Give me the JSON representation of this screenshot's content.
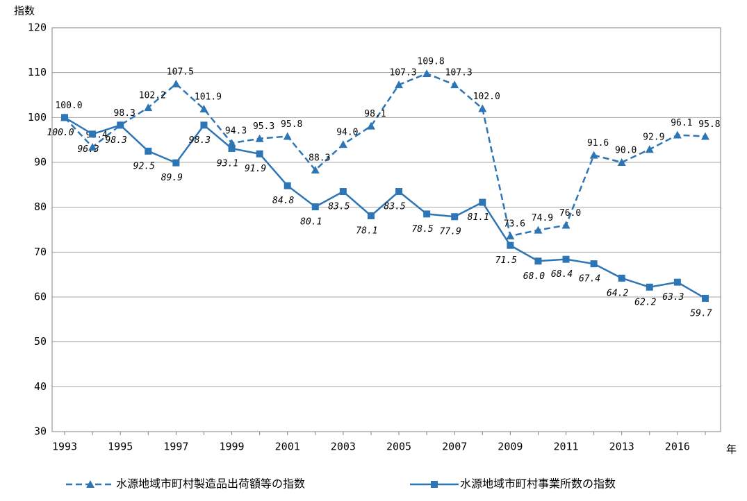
{
  "chart_data": {
    "type": "line",
    "y_label": "指数",
    "x_label": "年",
    "categories": [
      "1993",
      null,
      "1995",
      null,
      "1997",
      null,
      "1999",
      null,
      "2001",
      null,
      "2003",
      null,
      "2005",
      null,
      "2007",
      null,
      "2009",
      null,
      "2011",
      null,
      "2013",
      null,
      "2016",
      null
    ],
    "ylim": [
      30,
      120
    ],
    "yticks": [
      30,
      40,
      50,
      60,
      70,
      80,
      90,
      100,
      110,
      120
    ],
    "grid": true,
    "legend": "bottom",
    "series": [
      {
        "name": "水源地域市町村製造品出荷額等の指数",
        "color": "#2e75b6",
        "dash": true,
        "marker": "triangle",
        "values": [
          100.0,
          93.4,
          98.3,
          102.2,
          107.5,
          101.9,
          94.3,
          95.3,
          95.8,
          88.3,
          94.0,
          98.1,
          107.3,
          109.8,
          107.3,
          102.0,
          73.6,
          74.9,
          76.0,
          91.6,
          90.0,
          92.9,
          96.1,
          95.8
        ],
        "value_labels": [
          "100.0",
          "93.4",
          "98.3",
          "102.2",
          "107.5",
          "101.9",
          "94.3",
          "95.3",
          "95.8",
          "88.3",
          "94.0",
          "98.1",
          "107.3",
          "109.8",
          "107.3",
          "102.0",
          "73.6",
          "74.9",
          "76.0",
          "91.6",
          "90.0",
          "92.9",
          "96.1",
          "95.8"
        ]
      },
      {
        "name": "水源地域市町村事業所数の指数",
        "color": "#2e75b6",
        "dash": false,
        "marker": "square",
        "values": [
          100.0,
          96.3,
          98.3,
          92.5,
          89.9,
          98.3,
          93.1,
          91.9,
          84.8,
          80.1,
          83.5,
          78.1,
          83.5,
          78.5,
          77.9,
          81.1,
          71.5,
          68.0,
          68.4,
          67.4,
          64.2,
          62.2,
          63.3,
          59.7
        ],
        "value_labels": [
          "100.0",
          "96.3",
          "98.3",
          "92.5",
          "89.9",
          "98.3",
          "93.1",
          "91.9",
          "84.8",
          "80.1",
          "83.5",
          "78.1",
          "83.5",
          "78.5",
          "77.9",
          "81.1",
          "71.5",
          "68.0",
          "68.4",
          "67.4",
          "64.2",
          "62.2",
          "63.3",
          "59.7"
        ]
      }
    ]
  }
}
